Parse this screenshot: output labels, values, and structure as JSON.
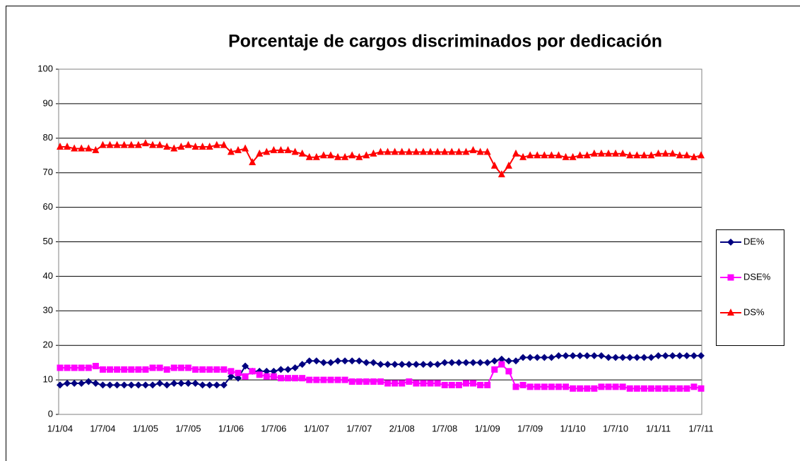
{
  "chart_data": {
    "type": "line",
    "title": "Porcentaje de cargos discriminados por dedicación",
    "categories": [
      "1/1/04",
      null,
      null,
      null,
      null,
      null,
      "1/7/04",
      null,
      null,
      null,
      null,
      null,
      "1/1/05",
      null,
      null,
      null,
      null,
      null,
      "1/7/05",
      null,
      null,
      null,
      null,
      null,
      "1/1/06",
      null,
      null,
      null,
      null,
      null,
      "1/7/06",
      null,
      null,
      null,
      null,
      null,
      "1/1/07",
      null,
      null,
      null,
      null,
      null,
      "1/7/07",
      null,
      null,
      null,
      null,
      null,
      "2/1/08",
      null,
      null,
      null,
      null,
      null,
      "1/7/08",
      null,
      null,
      null,
      null,
      null,
      "1/1/09",
      null,
      null,
      null,
      null,
      null,
      "1/7/09",
      null,
      null,
      null,
      null,
      null,
      "1/1/10",
      null,
      null,
      null,
      null,
      null,
      "1/7/10",
      null,
      null,
      null,
      null,
      null,
      "1/1/11",
      null,
      null,
      null,
      null,
      null,
      "1/7/11"
    ],
    "series": [
      {
        "name": "DE%",
        "color": "#000080",
        "marker": "diamond",
        "values": [
          8.5,
          9,
          9,
          9,
          9.5,
          9,
          8.5,
          8.5,
          8.5,
          8.5,
          8.5,
          8.5,
          8.5,
          8.5,
          9,
          8.5,
          9,
          9,
          9,
          9,
          8.5,
          8.5,
          8.5,
          8.5,
          11,
          10.5,
          14,
          12.5,
          12.5,
          12.5,
          12.5,
          13,
          13,
          13.5,
          14.5,
          15.5,
          15.5,
          15,
          15,
          15.5,
          15.5,
          15.5,
          15.5,
          15,
          15,
          14.5,
          14.5,
          14.5,
          14.5,
          14.5,
          14.5,
          14.5,
          14.5,
          14.5,
          15,
          15,
          15,
          15,
          15,
          15,
          15,
          15.5,
          16,
          15.5,
          15.5,
          16.5,
          16.5,
          16.5,
          16.5,
          16.5,
          17,
          17,
          17,
          17,
          17,
          17,
          17,
          16.5,
          16.5,
          16.5,
          16.5,
          16.5,
          16.5,
          16.5,
          17,
          17,
          17,
          17,
          17,
          17,
          17
        ]
      },
      {
        "name": "DSE%",
        "color": "#FF00FF",
        "marker": "square",
        "values": [
          13.5,
          13.5,
          13.5,
          13.5,
          13.5,
          14,
          13,
          13,
          13,
          13,
          13,
          13,
          13,
          13.5,
          13.5,
          13,
          13.5,
          13.5,
          13.5,
          13,
          13,
          13,
          13,
          13,
          12.5,
          12,
          11,
          12.5,
          11.5,
          11,
          11,
          10.5,
          10.5,
          10.5,
          10.5,
          10,
          10,
          10,
          10,
          10,
          10,
          9.5,
          9.5,
          9.5,
          9.5,
          9.5,
          9,
          9,
          9,
          9.5,
          9,
          9,
          9,
          9,
          8.5,
          8.5,
          8.5,
          9,
          9,
          8.5,
          8.5,
          13,
          14.5,
          12.5,
          8,
          8.5,
          8,
          8,
          8,
          8,
          8,
          8,
          7.5,
          7.5,
          7.5,
          7.5,
          8,
          8,
          8,
          8,
          7.5,
          7.5,
          7.5,
          7.5,
          7.5,
          7.5,
          7.5,
          7.5,
          7.5,
          8,
          7.5
        ]
      },
      {
        "name": "DS%",
        "color": "#FF0000",
        "marker": "triangle",
        "values": [
          77.5,
          77.5,
          77,
          77,
          77,
          76.5,
          78,
          78,
          78,
          78,
          78,
          78,
          78.5,
          78,
          78,
          77.5,
          77,
          77.5,
          78,
          77.5,
          77.5,
          77.5,
          78,
          78,
          76,
          76.5,
          77,
          73,
          75.5,
          76,
          76.5,
          76.5,
          76.5,
          76,
          75.5,
          74.5,
          74.5,
          75,
          75,
          74.5,
          74.5,
          75,
          74.5,
          75,
          75.5,
          76,
          76,
          76,
          76,
          76,
          76,
          76,
          76,
          76,
          76,
          76,
          76,
          76,
          76.5,
          76,
          76,
          72,
          69.5,
          72,
          75.5,
          74.5,
          75,
          75,
          75,
          75,
          75,
          74.5,
          74.5,
          75,
          75,
          75.5,
          75.5,
          75.5,
          75.5,
          75.5,
          75,
          75,
          75,
          75,
          75.5,
          75.5,
          75.5,
          75,
          75,
          74.5,
          75
        ]
      }
    ],
    "ylim": [
      0,
      100
    ],
    "yticks": [
      0,
      10,
      20,
      30,
      40,
      50,
      60,
      70,
      80,
      90,
      100
    ],
    "grid": true,
    "legend": "right"
  }
}
